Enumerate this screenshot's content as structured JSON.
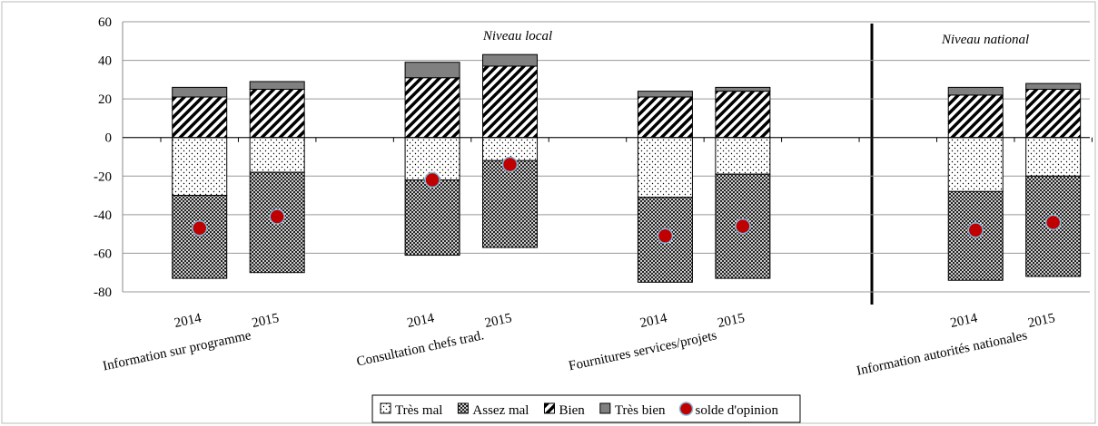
{
  "chart_data": {
    "type": "stacked_bar",
    "categories": [
      "2014",
      "2015",
      null,
      "2014",
      "2015",
      null,
      "2014",
      "2015",
      null,
      null,
      "2014",
      "2015"
    ],
    "group_labels": [
      "Information sur programme",
      "Consultation chefs trad.",
      "Fournitures services/projets",
      "Information autorités nationales"
    ],
    "annotations": [
      "Niveau local",
      "Niveau national"
    ],
    "series": [
      {
        "name": "Très mal",
        "color": "#ffffff",
        "pattern": "dots",
        "values": [
          -30,
          -18,
          null,
          -22,
          -12,
          null,
          -31,
          -19,
          null,
          null,
          -28,
          -20
        ]
      },
      {
        "name": "Assez mal",
        "color": "#ffffff",
        "pattern": "crosshatch",
        "values": [
          -43,
          -52,
          null,
          -39,
          -45,
          null,
          -44,
          -54,
          null,
          null,
          -46,
          -52
        ]
      },
      {
        "name": "Bien",
        "color": "#ffffff",
        "pattern": "diagonal",
        "values": [
          21,
          25,
          null,
          31,
          37,
          null,
          21,
          24,
          null,
          null,
          22,
          25
        ]
      },
      {
        "name": "Très bien",
        "color": "#808080",
        "pattern": "solid",
        "values": [
          5,
          4,
          null,
          8,
          6,
          null,
          3,
          2,
          null,
          null,
          4,
          3
        ]
      },
      {
        "name": "solde d'opinion",
        "type": "scatter",
        "color": "#c00000",
        "values": [
          -47,
          -41,
          null,
          -22,
          -14,
          null,
          -51,
          -46,
          null,
          null,
          -48,
          -44
        ]
      }
    ],
    "ylim": [
      -80,
      60
    ],
    "yticks": [
      -80,
      -60,
      -40,
      -20,
      0,
      20,
      40,
      60
    ],
    "grid": true,
    "legend": "bottom"
  }
}
